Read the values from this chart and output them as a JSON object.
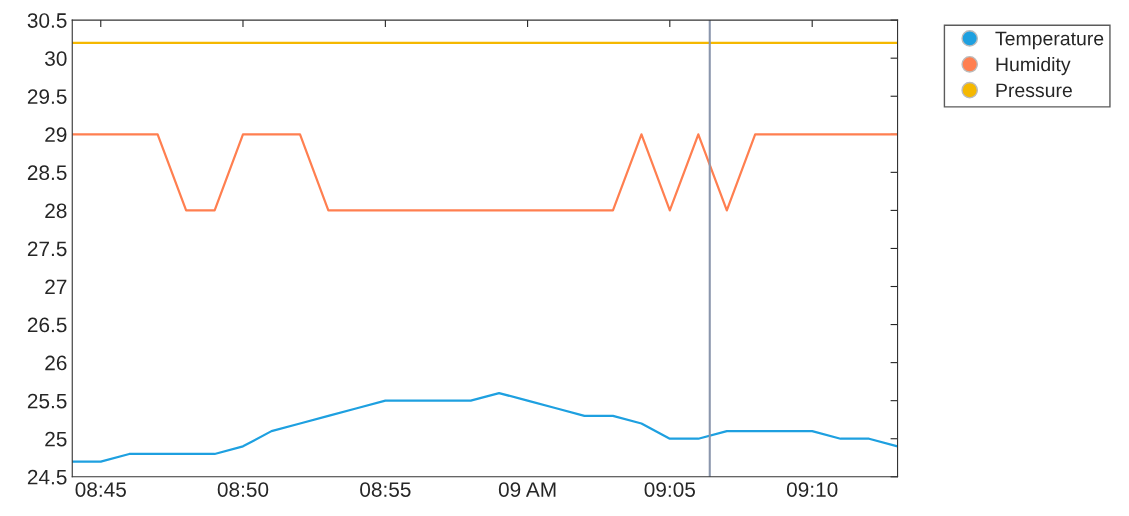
{
  "chart_data": {
    "type": "line",
    "x": [
      8.7333,
      8.75,
      8.7667,
      8.7833,
      8.8,
      8.8167,
      8.8333,
      8.85,
      8.8667,
      8.8833,
      8.9,
      8.9167,
      8.9333,
      8.95,
      8.9667,
      8.9833,
      9.0,
      9.0167,
      9.0333,
      9.05,
      9.0667,
      9.0833,
      9.1,
      9.1167,
      9.1333,
      9.15,
      9.1667,
      9.1833,
      9.2,
      9.2167
    ],
    "series": [
      {
        "name": "Temperature",
        "color": "#1ea0e0",
        "values": [
          24.7,
          24.7,
          24.8,
          24.8,
          24.8,
          24.8,
          24.9,
          25.1,
          25.2,
          25.3,
          25.4,
          25.5,
          25.5,
          25.5,
          25.5,
          25.6,
          25.5,
          25.4,
          25.3,
          25.3,
          25.2,
          25.0,
          25.0,
          25.1,
          25.1,
          25.1,
          25.1,
          25.0,
          25.0,
          24.9
        ]
      },
      {
        "name": "Humidity",
        "color": "#ff7f50",
        "values": [
          29,
          29,
          29,
          29,
          28,
          28,
          29,
          29,
          29,
          28,
          28,
          28,
          28,
          28,
          28,
          28,
          28,
          28,
          28,
          28,
          29,
          28,
          29,
          28,
          29,
          29,
          29,
          29,
          29,
          29
        ]
      },
      {
        "name": "Pressure",
        "color": "#f5b800",
        "values": [
          30.2,
          30.2,
          30.2,
          30.2,
          30.2,
          30.2,
          30.2,
          30.2,
          30.2,
          30.2,
          30.2,
          30.2,
          30.2,
          30.2,
          30.2,
          30.2,
          30.2,
          30.2,
          30.2,
          30.2,
          30.2,
          30.2,
          30.2,
          30.2,
          30.2,
          30.2,
          30.2,
          30.2,
          30.2,
          30.2
        ]
      }
    ],
    "xlim": [
      8.7333,
      9.2167
    ],
    "xticks": [
      {
        "value": 8.75,
        "label": "08:45"
      },
      {
        "value": 8.8333,
        "label": "08:50"
      },
      {
        "value": 8.9167,
        "label": "08:55"
      },
      {
        "value": 9.0,
        "label": "09 AM"
      },
      {
        "value": 9.0833,
        "label": "09:05"
      },
      {
        "value": 9.1667,
        "label": "09:10"
      }
    ],
    "ylim": [
      24.5,
      30.5
    ],
    "yticks": [
      24.5,
      25,
      25.5,
      26,
      26.5,
      27,
      27.5,
      28,
      28.5,
      29,
      29.5,
      30,
      30.5
    ],
    "ref_lines": [
      {
        "axis": "x",
        "value": 9.1067,
        "color": "#8a96ac"
      }
    ],
    "legend": "top right",
    "grid": false,
    "marker": "none",
    "line_style": "solid"
  }
}
